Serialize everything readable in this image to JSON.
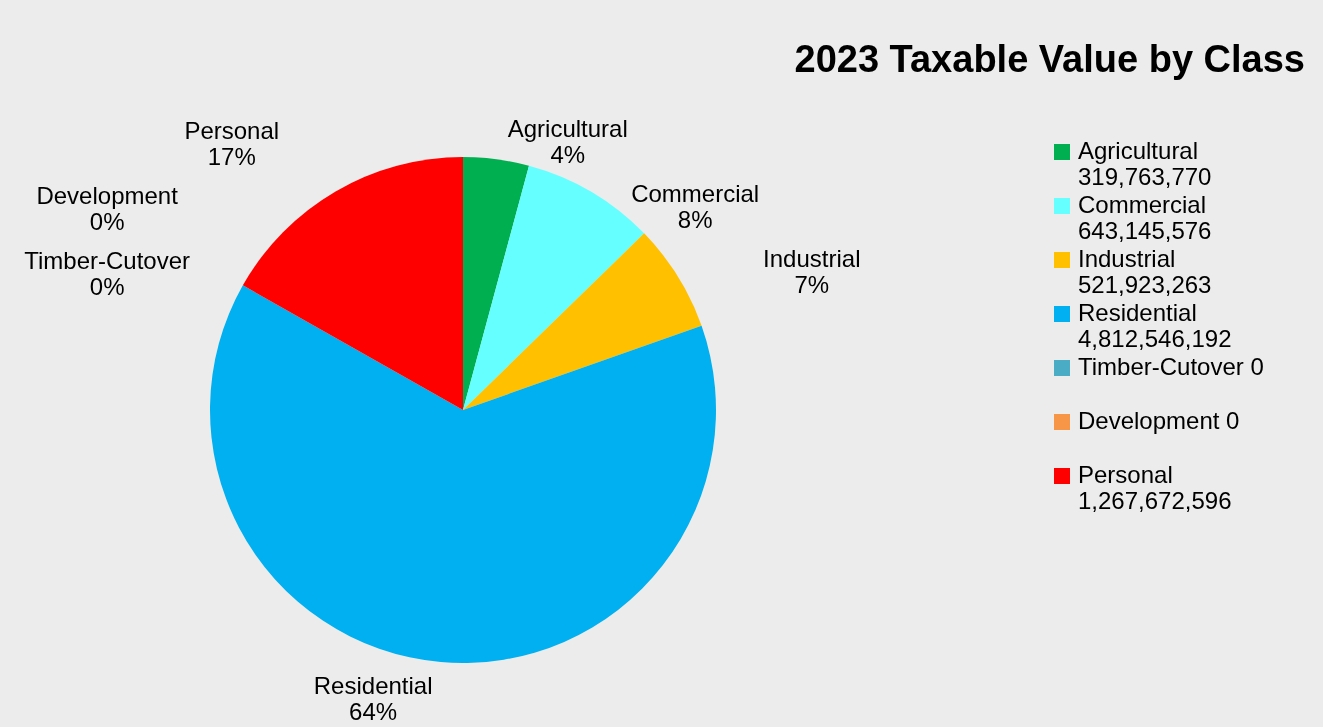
{
  "chart_data": {
    "type": "pie",
    "title": "2023 Taxable Value by Class",
    "categories": [
      "Agricultural 319,763,770",
      "Commercial 643,145,576",
      "Industrial 521,923,263",
      "Residential 4,812,546,192",
      "Timber-Cutover 0",
      "Development 0",
      "Personal 1,267,672,596"
    ],
    "values": [
      4.2,
      8.5,
      6.9,
      63.6,
      0,
      0,
      16.8
    ],
    "colors": [
      "#00b050",
      "#66ffff",
      "#ffc000",
      "#00b0f0",
      "#4bacc6",
      "#f79646",
      "#ff0000"
    ],
    "value_labels": [
      "Agricultural 4%",
      "Commercial 8%",
      "Industrial 7%",
      "Residential 64%",
      "Timber-Cutover 0%",
      "Development 0%",
      "Personal 17%"
    ],
    "legend": "right"
  }
}
